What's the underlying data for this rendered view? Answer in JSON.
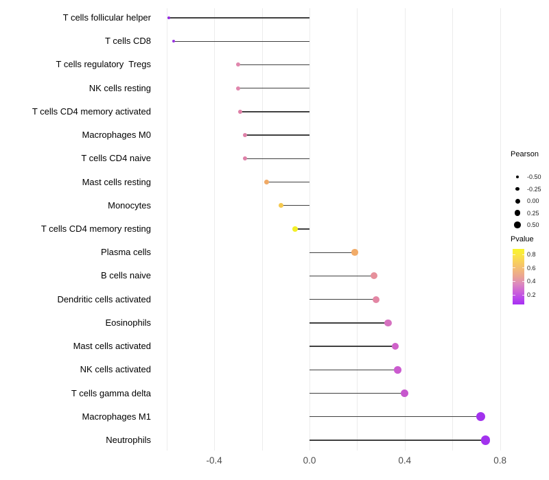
{
  "chart_data": {
    "type": "scatter",
    "subtype": "lollipop",
    "title": "",
    "xlabel": "",
    "ylabel": "",
    "xlim": [
      -0.64,
      0.82
    ],
    "grid": "vertical-only",
    "grid_values": [
      -0.6,
      -0.4,
      -0.2,
      0.0,
      0.2,
      0.4,
      0.6,
      0.8
    ],
    "x_ticks": [
      {
        "value": -0.4,
        "label": "-0.4"
      },
      {
        "value": 0.0,
        "label": "0.0"
      },
      {
        "value": 0.4,
        "label": "0.4"
      },
      {
        "value": 0.8,
        "label": "0.8"
      }
    ],
    "points": [
      {
        "label": "T cells follicular helper",
        "pearson": -0.59,
        "pvalue_approx": 0.1,
        "color": "#9228dd"
      },
      {
        "label": "T cells CD8",
        "pearson": -0.57,
        "pvalue_approx": 0.14,
        "color": "#9935e0"
      },
      {
        "label": "T cells regulatory  Tregs",
        "pearson": -0.3,
        "pvalue_approx": 0.45,
        "color": "#e087ad"
      },
      {
        "label": "NK cells resting",
        "pearson": -0.3,
        "pvalue_approx": 0.45,
        "color": "#e087ad"
      },
      {
        "label": "T cells CD4 memory activated",
        "pearson": -0.29,
        "pvalue_approx": 0.45,
        "color": "#de81a8"
      },
      {
        "label": "Macrophages M0",
        "pearson": -0.27,
        "pvalue_approx": 0.46,
        "color": "#de81a8"
      },
      {
        "label": "T cells CD4 naive",
        "pearson": -0.27,
        "pvalue_approx": 0.46,
        "color": "#de81a8"
      },
      {
        "label": "Mast cells resting",
        "pearson": -0.18,
        "pvalue_approx": 0.65,
        "color": "#f0aa66"
      },
      {
        "label": "Monocytes",
        "pearson": -0.12,
        "pvalue_approx": 0.75,
        "color": "#f5c94f"
      },
      {
        "label": "T cells CD4 memory resting",
        "pearson": -0.06,
        "pvalue_approx": 0.85,
        "color": "#f3ef28"
      },
      {
        "label": "Plasma cells",
        "pearson": 0.19,
        "pvalue_approx": 0.64,
        "color": "#f1ab68"
      },
      {
        "label": "B cells naive",
        "pearson": 0.27,
        "pvalue_approx": 0.52,
        "color": "#e6909b"
      },
      {
        "label": "Dendritic cells activated",
        "pearson": 0.28,
        "pvalue_approx": 0.49,
        "color": "#e386a4"
      },
      {
        "label": "Eosinophils",
        "pearson": 0.33,
        "pvalue_approx": 0.4,
        "color": "#d671c0"
      },
      {
        "label": "Mast cells activated",
        "pearson": 0.36,
        "pvalue_approx": 0.35,
        "color": "#cf62c9"
      },
      {
        "label": "NK cells activated",
        "pearson": 0.37,
        "pvalue_approx": 0.33,
        "color": "#cb5bcf"
      },
      {
        "label": "T cells gamma delta",
        "pearson": 0.4,
        "pvalue_approx": 0.3,
        "color": "#c657cd"
      },
      {
        "label": "Macrophages M1",
        "pearson": 0.72,
        "pvalue_approx": 0.07,
        "color": "#a232ee"
      },
      {
        "label": "Neutrophils",
        "pearson": 0.74,
        "pvalue_approx": 0.07,
        "color": "#a232ee"
      }
    ],
    "legend_size": {
      "title": "Pearson",
      "entries": [
        {
          "value": -0.5,
          "label": "-0.50"
        },
        {
          "value": -0.25,
          "label": "-0.25"
        },
        {
          "value": 0.0,
          "label": "0.00"
        },
        {
          "value": 0.25,
          "label": "0.25"
        },
        {
          "value": 0.5,
          "label": "0.50"
        }
      ],
      "dot_color": "#000000"
    },
    "legend_color": {
      "title": "Pvalue",
      "ticks": [
        {
          "value": 0.8,
          "label": "0.8"
        },
        {
          "value": 0.6,
          "label": "0.6"
        },
        {
          "value": 0.4,
          "label": "0.4"
        },
        {
          "value": 0.2,
          "label": "0.2"
        }
      ],
      "range": [
        0.07,
        0.86
      ],
      "gradient_bottom_to_top": [
        "#a62ff2",
        "#bb4aea",
        "#cf68d4",
        "#dd8abd",
        "#eaa394",
        "#f2b97a",
        "#f8cd60",
        "#fbe347",
        "#f8f52b"
      ]
    },
    "colors": {
      "stem": "#3f3f3f",
      "gridline": "#ececec",
      "axis_text": "#4d4d4d",
      "label_text": "#000000",
      "background": "#ffffff"
    }
  }
}
